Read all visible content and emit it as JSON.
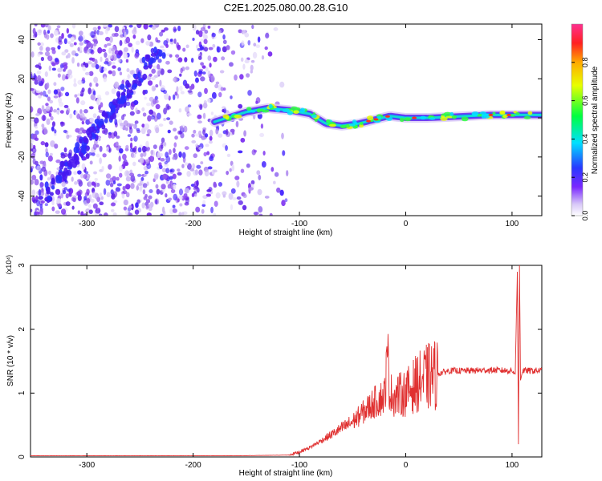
{
  "title": "C2E1.2025.080.00.28.G10",
  "chart_data": [
    {
      "type": "heatmap",
      "xlabel": "Height of straight line (km)",
      "ylabel": "Frequency (Hz)",
      "xlim": [
        -353,
        128
      ],
      "ylim": [
        -50,
        48
      ],
      "xticks": [
        -300,
        -200,
        -100,
        0,
        100
      ],
      "yticks": [
        -40,
        -20,
        0,
        20,
        40
      ],
      "colorbar": {
        "label": "Normalized spectral amplitude",
        "range": [
          0,
          1
        ],
        "ticks": [
          0.0,
          0.2,
          0.4,
          0.6,
          0.8
        ]
      },
      "features": {
        "noise_region_x": [
          -353,
          -110
        ],
        "diagonal_trace": {
          "x_start": -340,
          "y_start": -40,
          "x_end": -230,
          "y_end": 35
        },
        "signal_band": [
          [
            -180,
            -2
          ],
          [
            -150,
            3
          ],
          [
            -130,
            5
          ],
          [
            -110,
            4
          ],
          [
            -90,
            2
          ],
          [
            -75,
            -3
          ],
          [
            -60,
            -4
          ],
          [
            -45,
            -3
          ],
          [
            -30,
            -1
          ],
          [
            -15,
            1
          ],
          [
            0,
            0
          ],
          [
            20,
            0
          ],
          [
            40,
            0.5
          ],
          [
            60,
            1
          ],
          [
            80,
            1.5
          ],
          [
            100,
            1.5
          ],
          [
            128,
            1.5
          ]
        ]
      }
    },
    {
      "type": "line",
      "xlabel": "Height of straight line (km)",
      "ylabel": "SNR (10 * v/v)",
      "y_multiplier": "(x10⁴)",
      "xlim": [
        -353,
        128
      ],
      "ylim": [
        0,
        3
      ],
      "xticks": [
        -300,
        -200,
        -100,
        0,
        100
      ],
      "yticks": [
        0,
        1,
        2,
        3
      ],
      "series": [
        {
          "color": "#e03030",
          "points": [
            [
              -353,
              0.02
            ],
            [
              -250,
              0.02
            ],
            [
              -150,
              0.02
            ],
            [
              -110,
              0.03
            ],
            [
              -100,
              0.08
            ],
            [
              -90,
              0.15
            ],
            [
              -80,
              0.25
            ],
            [
              -70,
              0.35
            ],
            [
              -60,
              0.45
            ],
            [
              -50,
              0.55
            ],
            [
              -40,
              0.7
            ],
            [
              -30,
              0.85
            ],
            [
              -20,
              0.95
            ],
            [
              -17,
              1.6
            ],
            [
              -15,
              1.0
            ],
            [
              -10,
              0.95
            ],
            [
              -5,
              0.98
            ],
            [
              0,
              1.0
            ],
            [
              10,
              1.15
            ],
            [
              20,
              1.25
            ],
            [
              30,
              1.3
            ],
            [
              40,
              1.35
            ],
            [
              60,
              1.35
            ],
            [
              80,
              1.36
            ],
            [
              100,
              1.35
            ],
            [
              103,
              1.3
            ],
            [
              105,
              2.9
            ],
            [
              106,
              0.2
            ],
            [
              107,
              3.0
            ],
            [
              108,
              1.2
            ],
            [
              110,
              1.35
            ],
            [
              128,
              1.35
            ]
          ]
        }
      ]
    }
  ]
}
